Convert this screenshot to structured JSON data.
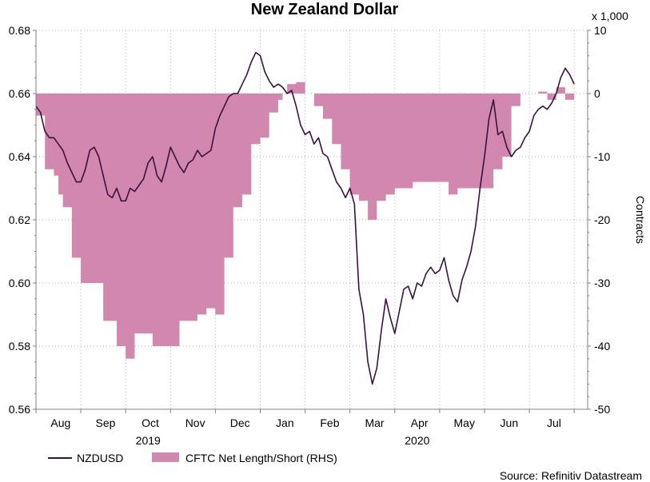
{
  "chart_data": {
    "type": "line",
    "title": "New Zealand Dollar",
    "left_axis": {
      "ylim": [
        0.56,
        0.68
      ],
      "ticks": [
        "0.68",
        "0.66",
        "0.64",
        "0.62",
        "0.60",
        "0.58",
        "0.56"
      ],
      "tick_values": [
        0.68,
        0.66,
        0.64,
        0.62,
        0.6,
        0.58,
        0.56
      ]
    },
    "right_axis": {
      "ylim": [
        -50,
        10
      ],
      "unit_label": "x 1,000",
      "label": "Contracts",
      "ticks": [
        "10",
        "0",
        "-10",
        "-20",
        "-30",
        "-40",
        "-50"
      ],
      "tick_values": [
        10,
        0,
        -10,
        -20,
        -30,
        -40,
        -50
      ]
    },
    "x_axis": {
      "range": [
        0,
        12.3
      ],
      "months": [
        "Aug",
        "Sep",
        "Oct",
        "Nov",
        "Dec",
        "Jan",
        "Feb",
        "Mar",
        "Apr",
        "May",
        "Jun",
        "Jul"
      ],
      "years": [
        {
          "label": "2019",
          "at": 2.5
        },
        {
          "label": "2020",
          "at": 8.5
        }
      ]
    },
    "series": [
      {
        "name": "NZDUSD",
        "axis": "left",
        "color": "#3a1240",
        "x": [
          0.0,
          0.1,
          0.2,
          0.3,
          0.4,
          0.5,
          0.6,
          0.7,
          0.8,
          0.9,
          1.0,
          1.1,
          1.2,
          1.3,
          1.4,
          1.5,
          1.6,
          1.7,
          1.8,
          1.9,
          2.0,
          2.1,
          2.2,
          2.3,
          2.4,
          2.5,
          2.6,
          2.7,
          2.8,
          2.9,
          3.0,
          3.1,
          3.2,
          3.3,
          3.4,
          3.5,
          3.6,
          3.7,
          3.8,
          3.9,
          4.0,
          4.1,
          4.2,
          4.3,
          4.4,
          4.5,
          4.6,
          4.7,
          4.8,
          4.9,
          5.0,
          5.1,
          5.2,
          5.3,
          5.4,
          5.5,
          5.6,
          5.7,
          5.8,
          5.9,
          6.0,
          6.1,
          6.2,
          6.3,
          6.4,
          6.5,
          6.6,
          6.7,
          6.8,
          6.9,
          7.0,
          7.1,
          7.2,
          7.3,
          7.4,
          7.5,
          7.6,
          7.7,
          7.8,
          7.9,
          8.0,
          8.1,
          8.2,
          8.3,
          8.4,
          8.5,
          8.6,
          8.7,
          8.8,
          8.9,
          9.0,
          9.1,
          9.2,
          9.3,
          9.4,
          9.5,
          9.6,
          9.7,
          9.8,
          9.9,
          10.0,
          10.1,
          10.2,
          10.3,
          10.4,
          10.5,
          10.6,
          10.7,
          10.8,
          10.9,
          11.0,
          11.1,
          11.2,
          11.3,
          11.4,
          11.5,
          11.6,
          11.7,
          11.8,
          11.9,
          12.0
        ],
        "values": [
          0.656,
          0.654,
          0.648,
          0.646,
          0.646,
          0.644,
          0.642,
          0.638,
          0.635,
          0.632,
          0.632,
          0.636,
          0.642,
          0.643,
          0.64,
          0.634,
          0.628,
          0.627,
          0.63,
          0.626,
          0.626,
          0.63,
          0.629,
          0.631,
          0.633,
          0.638,
          0.64,
          0.634,
          0.632,
          0.637,
          0.643,
          0.64,
          0.637,
          0.635,
          0.638,
          0.639,
          0.642,
          0.64,
          0.641,
          0.642,
          0.649,
          0.653,
          0.656,
          0.659,
          0.66,
          0.66,
          0.663,
          0.666,
          0.67,
          0.673,
          0.672,
          0.667,
          0.664,
          0.662,
          0.663,
          0.662,
          0.66,
          0.661,
          0.656,
          0.65,
          0.647,
          0.648,
          0.644,
          0.646,
          0.641,
          0.64,
          0.636,
          0.632,
          0.63,
          0.627,
          0.63,
          0.625,
          0.598,
          0.59,
          0.575,
          0.568,
          0.573,
          0.585,
          0.595,
          0.589,
          0.584,
          0.591,
          0.598,
          0.599,
          0.595,
          0.6,
          0.599,
          0.603,
          0.605,
          0.603,
          0.604,
          0.608,
          0.601,
          0.596,
          0.594,
          0.601,
          0.605,
          0.61,
          0.618,
          0.63,
          0.64,
          0.652,
          0.658,
          0.647,
          0.648,
          0.643,
          0.64,
          0.642,
          0.643,
          0.646,
          0.648,
          0.653,
          0.655,
          0.656,
          0.655,
          0.657,
          0.66,
          0.665,
          0.668,
          0.666,
          0.663
        ]
      },
      {
        "name": "CFTC Net Length/Short (RHS)",
        "axis": "right",
        "type": "area",
        "color": "#d187ae",
        "x": [
          0.0,
          0.2,
          0.4,
          0.5,
          0.6,
          0.8,
          1.0,
          1.1,
          1.2,
          1.3,
          1.4,
          1.5,
          1.6,
          1.7,
          1.8,
          1.9,
          2.0,
          2.1,
          2.2,
          2.3,
          2.4,
          2.5,
          2.6,
          2.7,
          2.8,
          2.9,
          3.0,
          3.2,
          3.4,
          3.6,
          3.8,
          4.0,
          4.2,
          4.4,
          4.6,
          4.8,
          5.0,
          5.2,
          5.4,
          5.5,
          5.6,
          5.8,
          6.0,
          6.2,
          6.4,
          6.6,
          6.8,
          7.0,
          7.2,
          7.4,
          7.6,
          7.8,
          8.0,
          8.2,
          8.4,
          8.6,
          8.8,
          9.0,
          9.2,
          9.4,
          9.6,
          9.8,
          10.0,
          10.2,
          10.4,
          10.6,
          10.8,
          11.0,
          11.2,
          11.4,
          11.6,
          11.8,
          12.0
        ],
        "values": [
          -3.5,
          -12,
          -13,
          -16,
          -18,
          -26,
          -30,
          -30,
          -30,
          -30,
          -30,
          -36,
          -36,
          -36,
          -40,
          -40,
          -42,
          -42,
          -38,
          -38,
          -38,
          -38,
          -40,
          -40,
          -40,
          -40,
          -40,
          -36,
          -36,
          -35,
          -34,
          -35,
          -26,
          -18,
          -16,
          -8,
          -7,
          -3,
          -1,
          0,
          1.5,
          1.8,
          0,
          -2,
          -4,
          -8,
          -12,
          -16,
          -17,
          -20,
          -17,
          -16,
          -15,
          -15,
          -14,
          -14,
          -14,
          -14,
          -16,
          -15,
          -15,
          -15,
          -15,
          -12,
          -10,
          -2,
          0,
          0,
          0.3,
          -1,
          1,
          -1,
          -1
        ]
      }
    ],
    "legend": [
      {
        "label": "NZDUSD",
        "type": "line"
      },
      {
        "label": "CFTC Net Length/Short (RHS)",
        "type": "area"
      }
    ],
    "source": "Source: Refinitiv Datastream"
  }
}
